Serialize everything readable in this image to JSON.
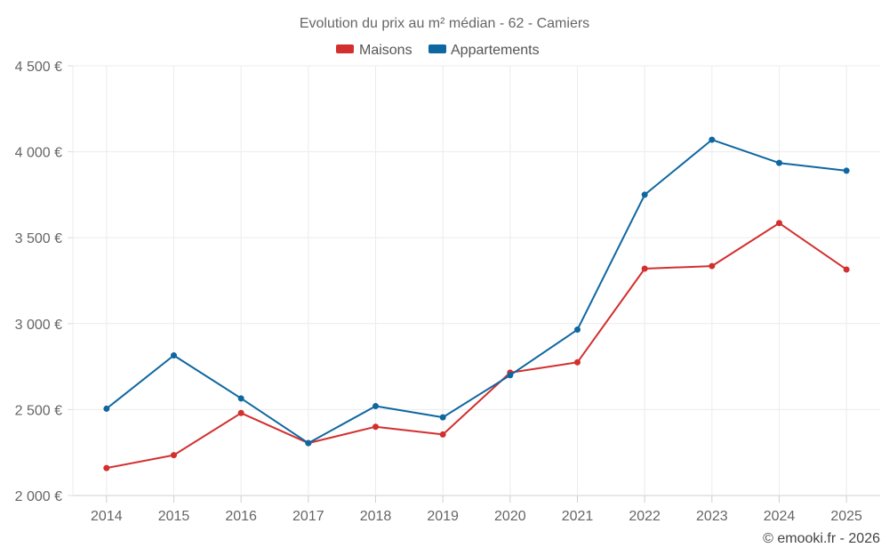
{
  "chart_data": {
    "type": "line",
    "title": "Evolution du prix au m² médian - 62 - Camiers",
    "categories": [
      "2014",
      "2015",
      "2016",
      "2017",
      "2018",
      "2019",
      "2020",
      "2021",
      "2022",
      "2023",
      "2024",
      "2025"
    ],
    "series": [
      {
        "name": "Maisons",
        "color": "#d32f2f",
        "values": [
          2160,
          2235,
          2480,
          2305,
          2400,
          2355,
          2715,
          2775,
          3320,
          3335,
          3585,
          3315
        ]
      },
      {
        "name": "Appartements",
        "color": "#0e67a0",
        "values": [
          2505,
          2815,
          2565,
          2305,
          2520,
          2455,
          2700,
          2965,
          3750,
          4070,
          3935,
          3890
        ]
      }
    ],
    "ylim": [
      2000,
      4500
    ],
    "yticks": [
      2000,
      2500,
      3000,
      3500,
      4000,
      4500
    ],
    "ytick_labels": [
      "2 000 €",
      "2 500 €",
      "3 000 €",
      "3 500 €",
      "4 000 €",
      "4 500 €"
    ],
    "xlabel": "",
    "ylabel": "",
    "legend_position": "top-center",
    "grid": true
  },
  "footer": {
    "credit": "© emooki.fr - 2026"
  }
}
